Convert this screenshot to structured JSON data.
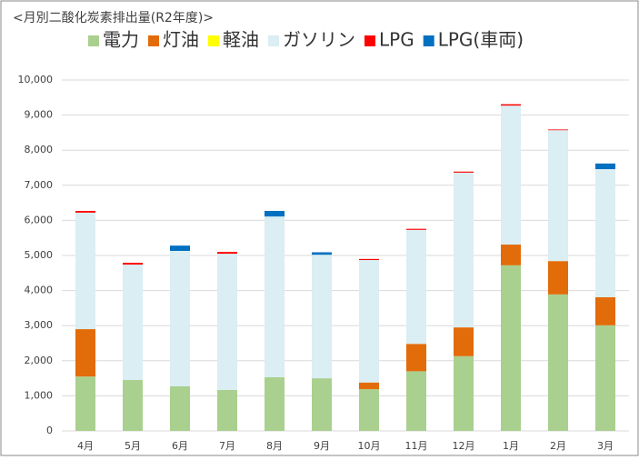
{
  "chart_data": {
    "type": "stacked_bar",
    "title": "<月別二酸化炭素排出量(R2年度)>",
    "categories": [
      "4月",
      "5月",
      "6月",
      "7月",
      "8月",
      "9月",
      "10月",
      "11月",
      "12月",
      "1月",
      "2月",
      "3月"
    ],
    "series": [
      {
        "name": "電力",
        "color": "#a9d08e",
        "values": [
          1550,
          1450,
          1270,
          1170,
          1530,
          1500,
          1190,
          1700,
          2130,
          4720,
          3890,
          3010
        ]
      },
      {
        "name": "灯油",
        "color": "#e26b0a",
        "values": [
          1350,
          0,
          0,
          0,
          0,
          0,
          190,
          780,
          820,
          590,
          950,
          800
        ]
      },
      {
        "name": "軽油",
        "color": "#ffff00",
        "values": [
          0,
          0,
          0,
          0,
          0,
          0,
          0,
          0,
          0,
          0,
          0,
          0
        ]
      },
      {
        "name": "ガソリン",
        "color": "#daeef3",
        "values": [
          3320,
          3290,
          3860,
          3880,
          4580,
          3520,
          3490,
          3250,
          4410,
          3960,
          3730,
          3650
        ]
      },
      {
        "name": "LPG",
        "color": "#ff0000",
        "values": [
          50,
          50,
          0,
          50,
          0,
          0,
          30,
          30,
          30,
          40,
          20,
          0
        ]
      },
      {
        "name": "LPG(車両)",
        "color": "#0070c0",
        "values": [
          0,
          0,
          150,
          0,
          160,
          70,
          0,
          0,
          0,
          0,
          0,
          160
        ]
      }
    ],
    "ylim": [
      0,
      10000
    ],
    "yticks": [
      0,
      {
        "value": 1000,
        "label": "1,000"
      },
      {
        "value": 2000,
        "label": "2,000"
      },
      {
        "value": 3000,
        "label": "3,000"
      },
      {
        "value": 4000,
        "label": "4,000"
      },
      {
        "value": 5000,
        "label": "5,000"
      },
      {
        "value": 6000,
        "label": "6,000"
      },
      {
        "value": 7000,
        "label": "7,000"
      },
      {
        "value": 8000,
        "label": "8,000"
      },
      {
        "value": 9000,
        "label": "9,000"
      },
      {
        "value": 10000,
        "label": "10,000"
      }
    ],
    "grid": true,
    "legend": "top"
  }
}
